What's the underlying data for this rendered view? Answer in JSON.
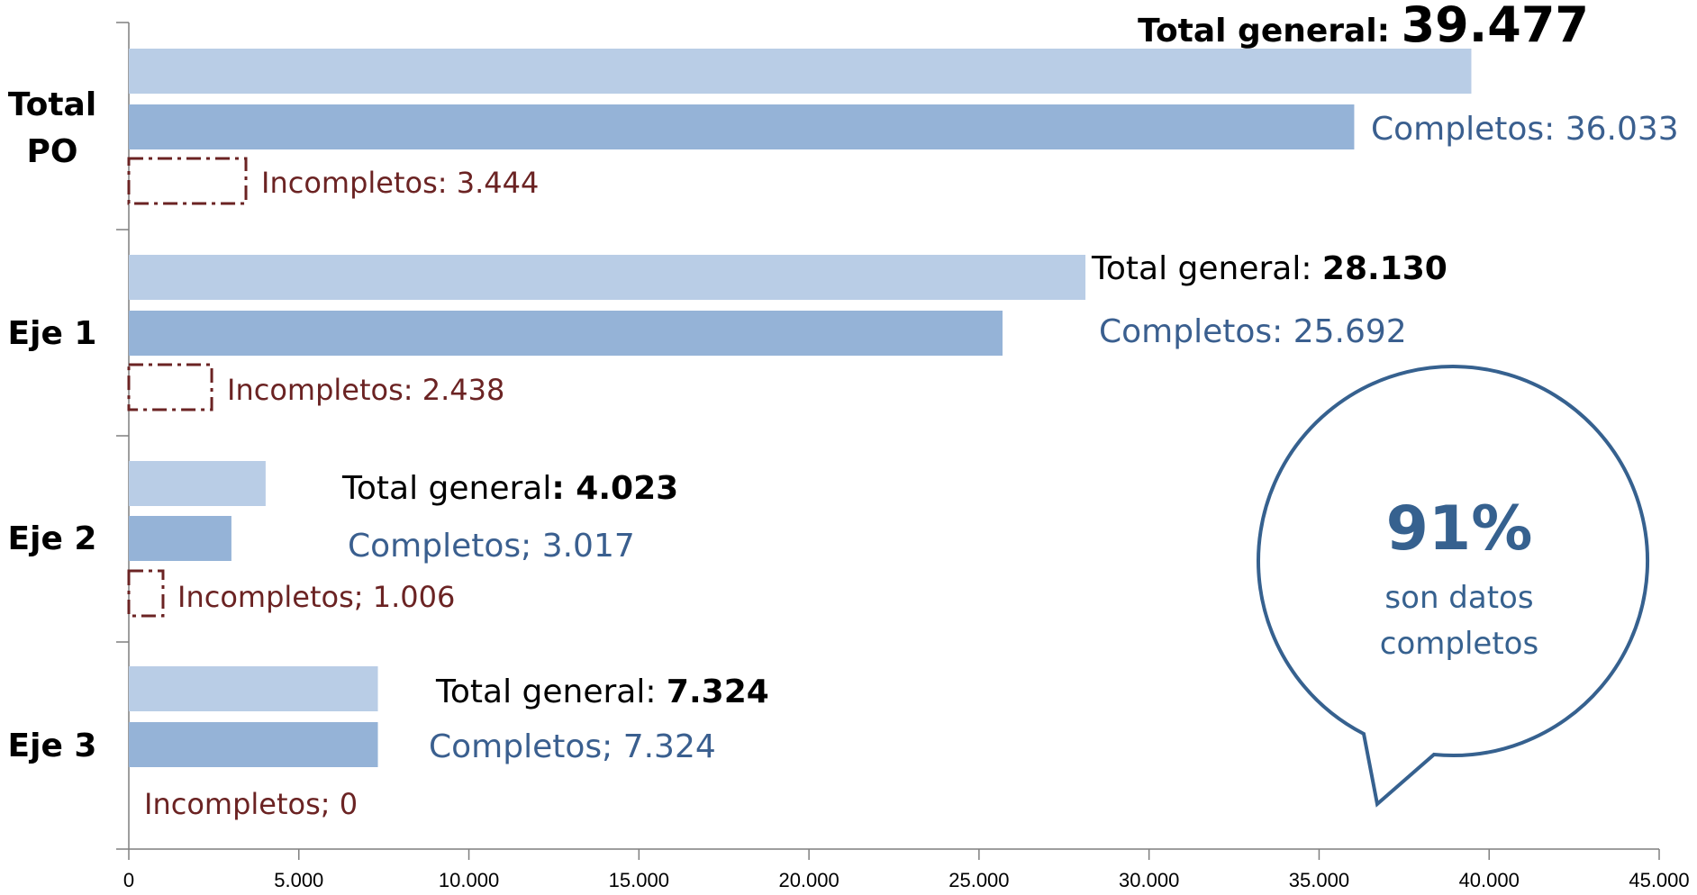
{
  "chart_data": {
    "type": "bar",
    "orientation": "horizontal",
    "categories": [
      "Total PO",
      "Eje 1",
      "Eje 2",
      "Eje 3"
    ],
    "category_lines": [
      [
        "Total",
        "PO"
      ],
      [
        "Eje 1"
      ],
      [
        "Eje 2"
      ],
      [
        "Eje 3"
      ]
    ],
    "series": [
      {
        "key": "total",
        "values": [
          39477,
          28130,
          4023,
          7324
        ],
        "color": "#b9cde6"
      },
      {
        "key": "completos",
        "values": [
          36033,
          25692,
          3017,
          7324
        ],
        "color": "#95b3d7"
      },
      {
        "key": "incompletos",
        "values": [
          3444,
          2438,
          1006,
          0
        ],
        "color": "#6b2323"
      }
    ],
    "data_labels": [
      {
        "total": {
          "prefix": "Total general: ",
          "value": "39.477"
        },
        "completos": "Completos: 36.033",
        "incompletos": "Incompletos: 3.444"
      },
      {
        "total": {
          "prefix": "Total general: ",
          "value": "28.130"
        },
        "completos": "Completos: 25.692",
        "incompletos": "Incompletos: 2.438"
      },
      {
        "total": {
          "prefix": "Total general",
          "value": ": 4.023"
        },
        "completos": "Completos; 3.017",
        "incompletos": "Incompletos; 1.006"
      },
      {
        "total": {
          "prefix": "Total general: ",
          "value": "7.324"
        },
        "completos": "Completos; 7.324",
        "incompletos": "Incompletos; 0"
      }
    ],
    "xlim": [
      0,
      45000
    ],
    "x_ticks": [
      0,
      5000,
      10000,
      15000,
      20000,
      25000,
      30000,
      35000,
      40000,
      45000
    ],
    "x_tick_labels": [
      "0",
      "5.000",
      "10.000",
      "15.000",
      "20.000",
      "25.000",
      "30.000",
      "35.000",
      "40.000",
      "45.000"
    ],
    "grid": false,
    "legend": "none"
  },
  "callout": {
    "percent": "91%",
    "line1": "son datos",
    "line2": "completos"
  }
}
